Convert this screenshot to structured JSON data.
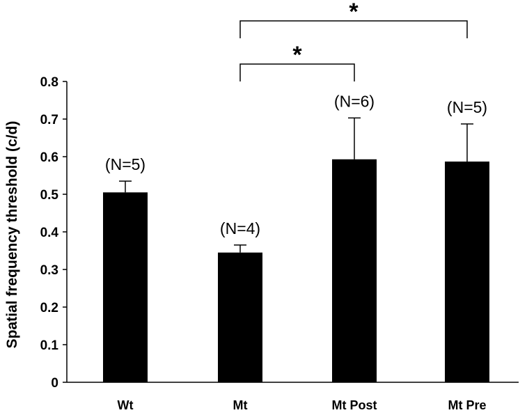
{
  "chart_data": {
    "type": "bar",
    "ylabel": "Spatial frequency threshold (c/d)",
    "xlabel": "",
    "ylim": [
      0,
      0.8
    ],
    "yticks": [
      "0",
      "0.1",
      "0.2",
      "0.3",
      "0.4",
      "0.5",
      "0.6",
      "0.7",
      "0.8"
    ],
    "categories": [
      "Wt",
      "Mt",
      "Mt Post",
      "Mt Pre"
    ],
    "values": [
      0.505,
      0.345,
      0.593,
      0.587
    ],
    "errors": [
      0.03,
      0.02,
      0.11,
      0.1
    ],
    "sample_labels": [
      "(N=5)",
      "(N=4)",
      "(N=6)",
      "(N=5)"
    ],
    "bar_color": "#000000",
    "grid": false,
    "significance": [
      {
        "from": "Mt",
        "to": "Mt Post",
        "label": "*"
      },
      {
        "from": "Mt",
        "to": "Mt Pre",
        "label": "*"
      }
    ]
  }
}
